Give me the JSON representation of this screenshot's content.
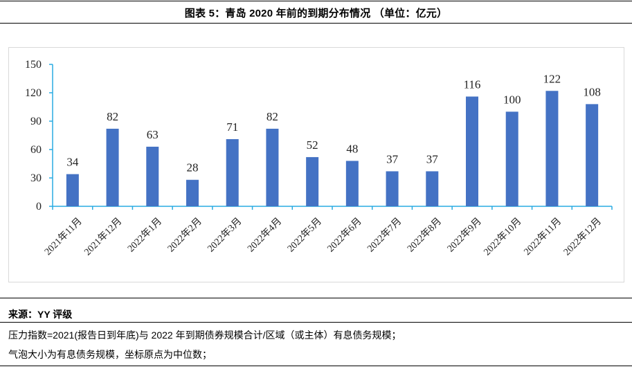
{
  "figure": {
    "title": "图表 5：青岛 2020 年前的到期分布情况 （单位：亿元）"
  },
  "chart_data": {
    "type": "bar",
    "categories": [
      "2021年11月",
      "2021年12月",
      "2022年1月",
      "2022年2月",
      "2022年3月",
      "2022年4月",
      "2022年5月",
      "2022年6月",
      "2022年7月",
      "2022年8月",
      "2022年9月",
      "2022年10月",
      "2022年11月",
      "2022年12月"
    ],
    "values": [
      34,
      82,
      63,
      28,
      71,
      82,
      52,
      48,
      37,
      37,
      116,
      100,
      122,
      108
    ],
    "yticks": [
      0,
      30,
      60,
      90,
      120,
      150
    ],
    "ylim": [
      0,
      150
    ],
    "bar_color": "#4472C4",
    "axis_color": "#29ABE2",
    "grid": false,
    "legend": "none",
    "data_labels": true
  },
  "footer": {
    "source": "来源：YY 评级",
    "note1": "压力指数=2021(报告日到年底)与 2022 年到期债券规模合计/区域（或主体）有息债务规模；",
    "note2": "气泡大小为有息债务规模，坐标原点为中位数；"
  }
}
